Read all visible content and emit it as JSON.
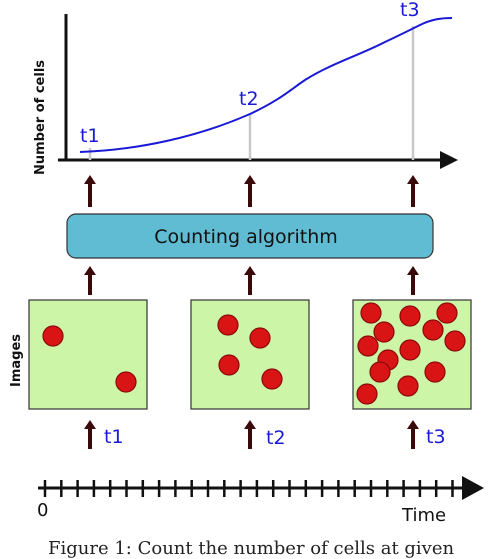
{
  "plot": {
    "ylabel": "Number of cells",
    "markers": [
      "t1",
      "t2",
      "t3"
    ]
  },
  "algorithm_box": {
    "label": "Counting algorithm"
  },
  "images": {
    "side_label": "Images",
    "frames": [
      {
        "time_label": "t1",
        "cell_count": 2
      },
      {
        "time_label": "t2",
        "cell_count": 4
      },
      {
        "time_label": "t3",
        "cell_count": 13
      }
    ]
  },
  "timeline": {
    "start_label": "0",
    "end_label": "Time"
  },
  "caption": {
    "text": "Figure 1: Count the number of cells at given"
  },
  "colors": {
    "curve": "#1a1ad6",
    "cell_fill": "#d91414",
    "frame_bg": "#cdf5a8",
    "box_fill": "#5fbcd3",
    "arrow": "#3a0a0a"
  }
}
